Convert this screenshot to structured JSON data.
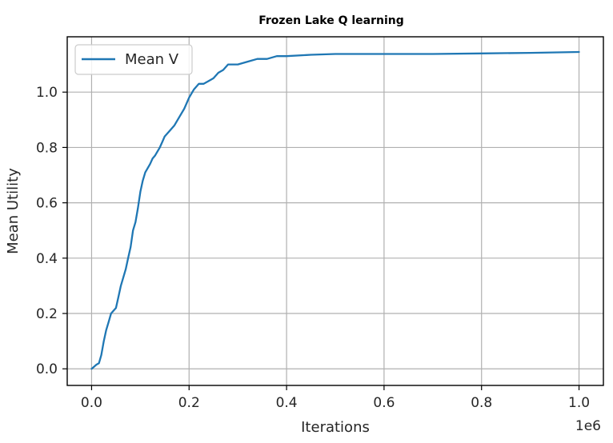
{
  "chart_data": {
    "type": "line",
    "title": "Frozen Lake Q learning",
    "xlabel": "Iterations",
    "ylabel": "Mean Utility",
    "x_offset_label": "1e6",
    "xlim": [
      -0.05,
      1.05
    ],
    "ylim": [
      -0.06,
      1.2
    ],
    "x_ticks": [
      0.0,
      0.2,
      0.4,
      0.6,
      0.8,
      1.0
    ],
    "x_tick_labels": [
      "0.0",
      "0.2",
      "0.4",
      "0.6",
      "0.8",
      "1.0"
    ],
    "y_ticks": [
      0.0,
      0.2,
      0.4,
      0.6,
      0.8,
      1.0
    ],
    "y_tick_labels": [
      "0.0",
      "0.2",
      "0.4",
      "0.6",
      "0.8",
      "1.0"
    ],
    "grid": true,
    "legend_position": "top-left",
    "series": [
      {
        "name": "Mean V",
        "color": "#1f77b4",
        "x": [
          0.0,
          0.01,
          0.015,
          0.02,
          0.025,
          0.03,
          0.035,
          0.04,
          0.05,
          0.055,
          0.06,
          0.07,
          0.075,
          0.08,
          0.085,
          0.09,
          0.095,
          0.1,
          0.105,
          0.11,
          0.12,
          0.125,
          0.13,
          0.14,
          0.145,
          0.15,
          0.155,
          0.16,
          0.17,
          0.18,
          0.19,
          0.2,
          0.21,
          0.22,
          0.23,
          0.24,
          0.25,
          0.26,
          0.27,
          0.28,
          0.3,
          0.32,
          0.34,
          0.36,
          0.38,
          0.4,
          0.45,
          0.5,
          0.6,
          0.7,
          0.8,
          0.9,
          1.0
        ],
        "y": [
          0.0,
          0.015,
          0.02,
          0.05,
          0.1,
          0.14,
          0.17,
          0.2,
          0.22,
          0.26,
          0.3,
          0.36,
          0.4,
          0.44,
          0.5,
          0.53,
          0.58,
          0.64,
          0.68,
          0.71,
          0.74,
          0.76,
          0.77,
          0.8,
          0.82,
          0.84,
          0.85,
          0.86,
          0.88,
          0.91,
          0.94,
          0.98,
          1.01,
          1.03,
          1.03,
          1.04,
          1.05,
          1.07,
          1.08,
          1.1,
          1.1,
          1.11,
          1.12,
          1.12,
          1.13,
          1.13,
          1.135,
          1.138,
          1.138,
          1.138,
          1.14,
          1.142,
          1.145
        ]
      }
    ]
  }
}
